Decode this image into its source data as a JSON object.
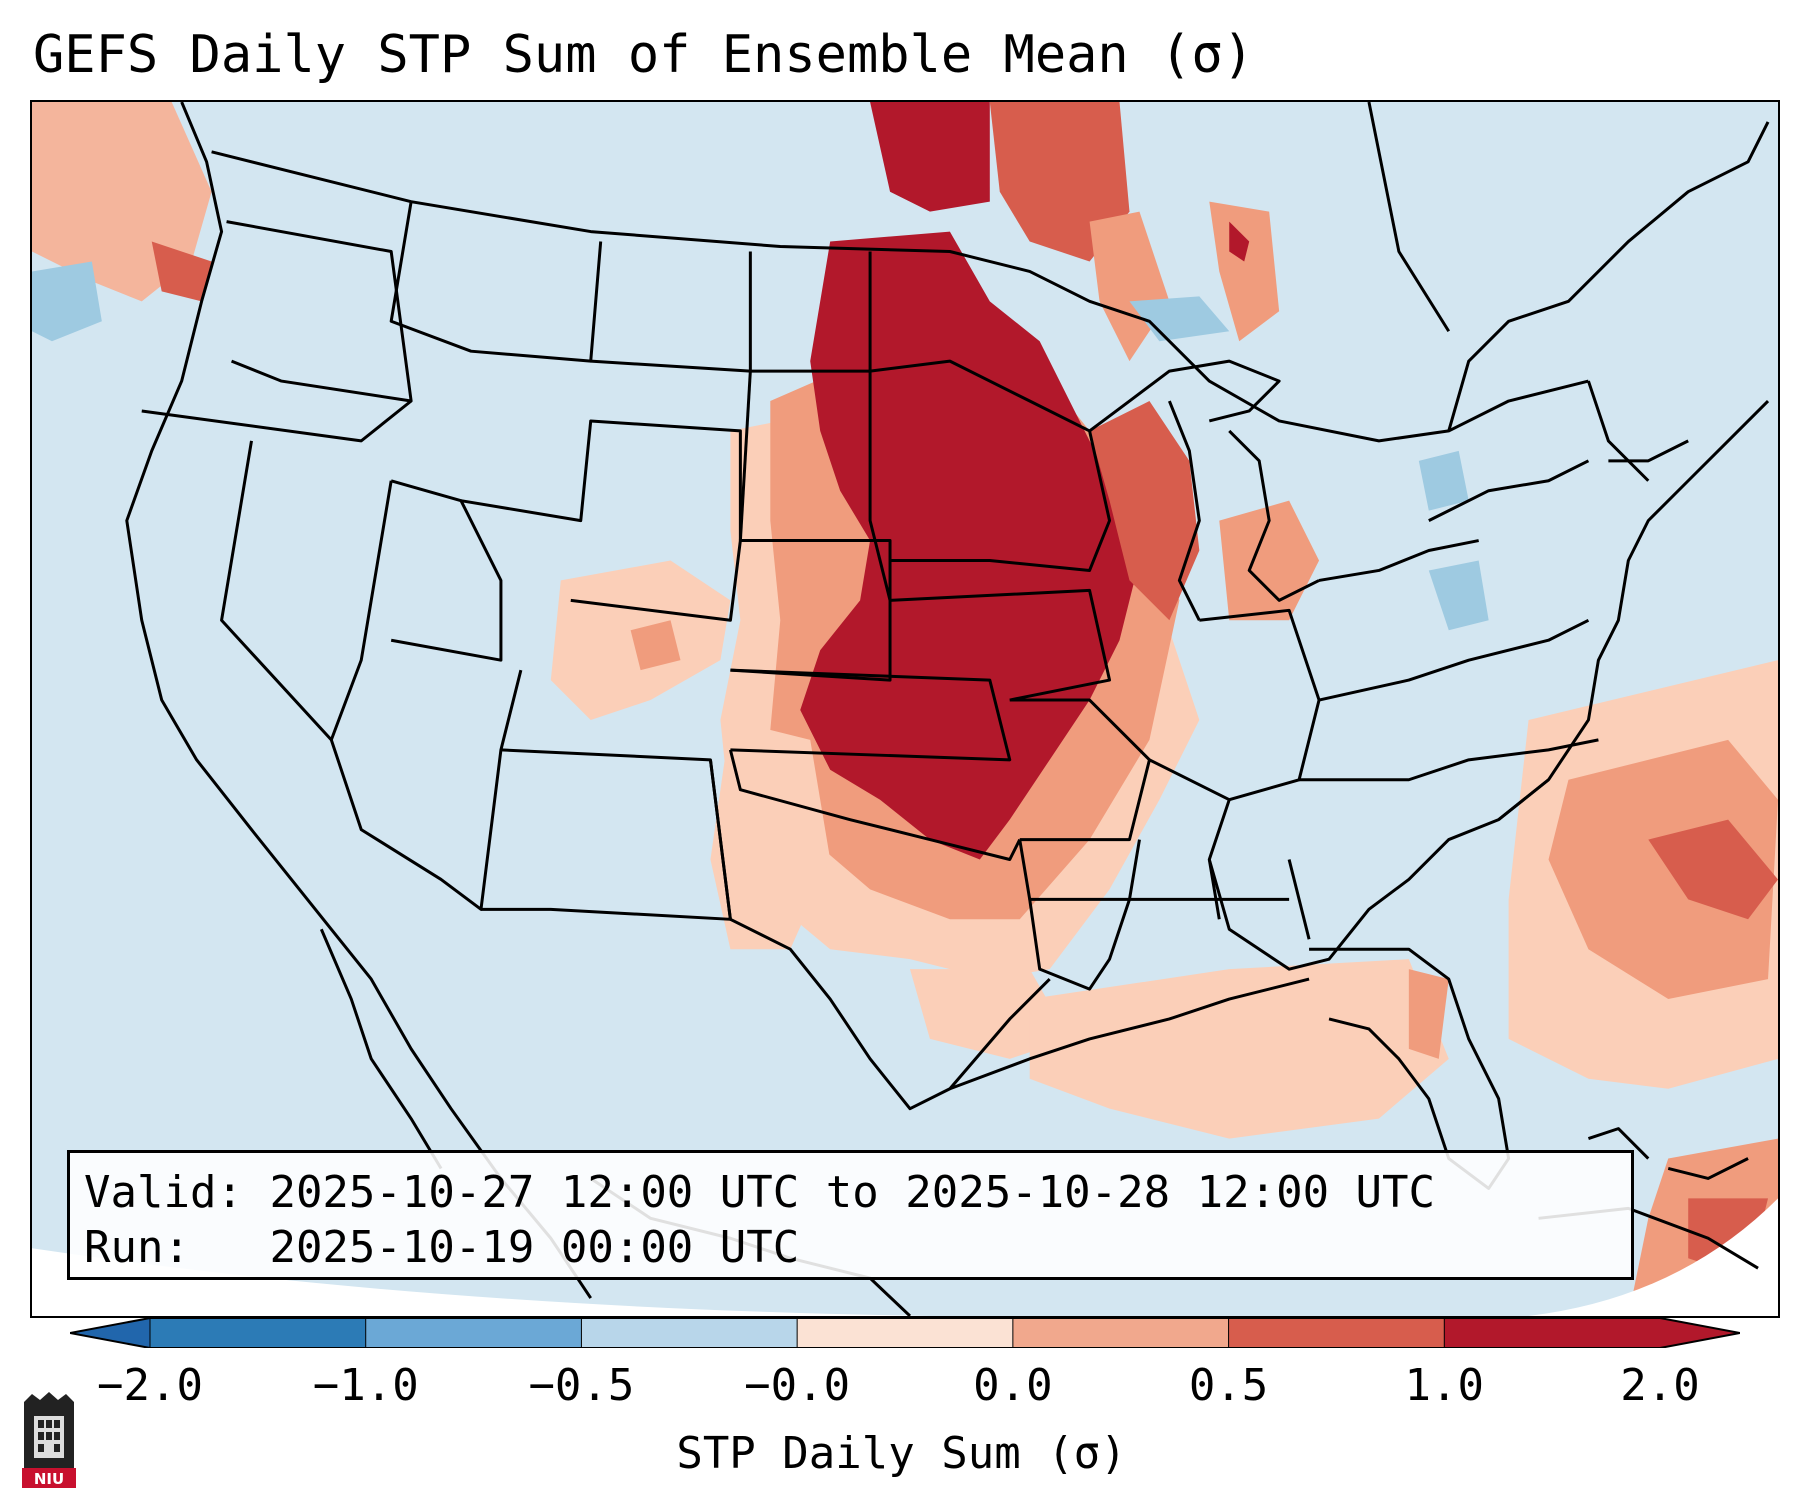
{
  "title": "GEFS Daily STP Sum of Ensemble Mean (σ)",
  "info": {
    "valid_label": "Valid:",
    "valid_value": "2025-10-27 12:00 UTC to 2025-10-28 12:00 UTC",
    "run_label": "Run:",
    "run_value": "2025-10-19 00:00 UTC"
  },
  "colorbar": {
    "label": "STP Daily Sum (σ)",
    "ticks": [
      "−2.0",
      "−1.0",
      "−0.5",
      "−0.0",
      "0.0",
      "0.5",
      "1.0",
      "2.0"
    ],
    "colors": [
      "#2c7bb6",
      "#6ba8d6",
      "#b8d6ea",
      "#e3eef6",
      "#fbe2d4",
      "#f1a88d",
      "#d75d4d",
      "#b2182b"
    ],
    "extend_low_color": "#2166ac",
    "extend_high_color": "#b2182b"
  },
  "map": {
    "background_color": "#d3e6f1",
    "border_color": "#000000"
  },
  "logo": {
    "text": "NIU"
  }
}
